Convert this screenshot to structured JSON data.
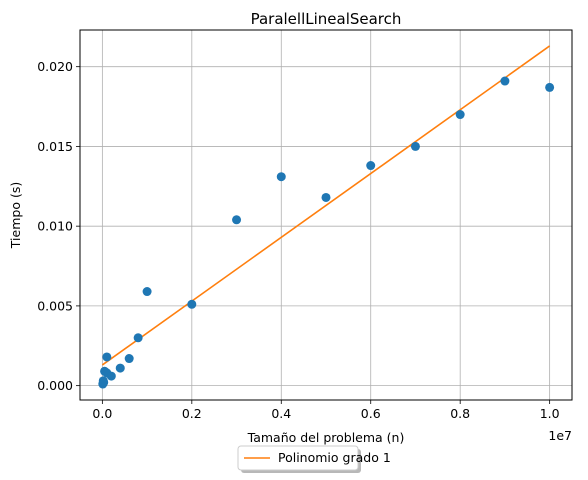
{
  "chart_data": {
    "type": "scatter",
    "title": "ParalellLinealSearch",
    "xlabel": "Tamaño del problema (n)",
    "ylabel": "Tiempo (s)",
    "x_scale_label": "1e7",
    "x_scale_factor": 10000000,
    "xlim": [
      -500000,
      10500000
    ],
    "ylim": [
      -0.0009,
      0.0223
    ],
    "xticks": [
      0,
      2000000,
      4000000,
      6000000,
      8000000,
      10000000
    ],
    "xtick_labels": [
      "0.0",
      "0.2",
      "0.4",
      "0.6",
      "0.8",
      "1.0"
    ],
    "yticks": [
      0,
      0.005,
      0.01,
      0.015,
      0.02
    ],
    "ytick_labels": [
      "0.000",
      "0.005",
      "0.010",
      "0.015",
      "0.020"
    ],
    "grid": true,
    "colors": {
      "points": "#1f77b4",
      "fit_line": "#ff7f0e",
      "grid": "#b0b0b0"
    },
    "points": [
      {
        "x": 10000,
        "y": 0.0001
      },
      {
        "x": 20000,
        "y": 0.0003
      },
      {
        "x": 30000,
        "y": 0.0002
      },
      {
        "x": 50000,
        "y": 0.0009
      },
      {
        "x": 100000,
        "y": 0.0018
      },
      {
        "x": 100000,
        "y": 0.0008
      },
      {
        "x": 200000,
        "y": 0.0006
      },
      {
        "x": 400000,
        "y": 0.0011
      },
      {
        "x": 600000,
        "y": 0.0017
      },
      {
        "x": 800000,
        "y": 0.003
      },
      {
        "x": 1000000,
        "y": 0.0059
      },
      {
        "x": 2000000,
        "y": 0.0051
      },
      {
        "x": 3000000,
        "y": 0.0104
      },
      {
        "x": 4000000,
        "y": 0.0131
      },
      {
        "x": 5000000,
        "y": 0.0118
      },
      {
        "x": 6000000,
        "y": 0.0138
      },
      {
        "x": 7000000,
        "y": 0.015
      },
      {
        "x": 8000000,
        "y": 0.017
      },
      {
        "x": 9000000,
        "y": 0.0191
      },
      {
        "x": 10000000,
        "y": 0.0187
      }
    ],
    "series": [
      {
        "name": "Polinomio grado 1",
        "type": "line",
        "x": [
          0,
          10000000
        ],
        "y": [
          0.0013,
          0.0213
        ]
      }
    ],
    "legend": {
      "placement": "bottom-center (below axes)",
      "entries": [
        "Polinomio grado 1"
      ]
    }
  }
}
